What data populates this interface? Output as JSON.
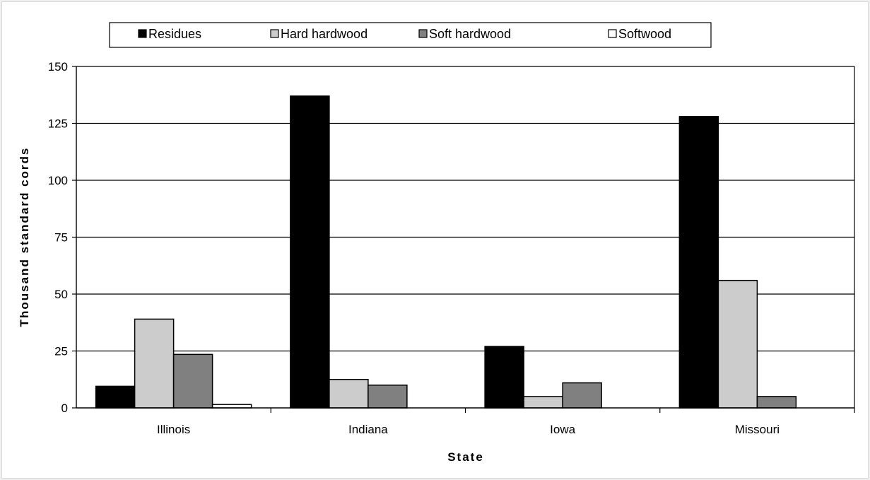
{
  "chart_data": {
    "type": "bar",
    "title": "",
    "xlabel": "State",
    "ylabel": "Thousand  standard  cords",
    "categories": [
      "Illinois",
      "Indiana",
      "Iowa",
      "Missouri"
    ],
    "series": [
      {
        "name": "Residues",
        "color": "#000000",
        "values": [
          9.5,
          137,
          27,
          128
        ]
      },
      {
        "name": "Hard hardwood",
        "color": "#cccccc",
        "values": [
          39,
          12.5,
          5,
          56
        ]
      },
      {
        "name": "Soft hardwood",
        "color": "#808080",
        "values": [
          23.5,
          10,
          11,
          5
        ]
      },
      {
        "name": "Softwood",
        "color": "#ffffff",
        "values": [
          1.5,
          0,
          0,
          0
        ]
      }
    ],
    "ylim": [
      0,
      150
    ],
    "yticks": [
      0,
      25,
      50,
      75,
      100,
      125,
      150
    ],
    "grid": true,
    "legend_position": "top"
  }
}
